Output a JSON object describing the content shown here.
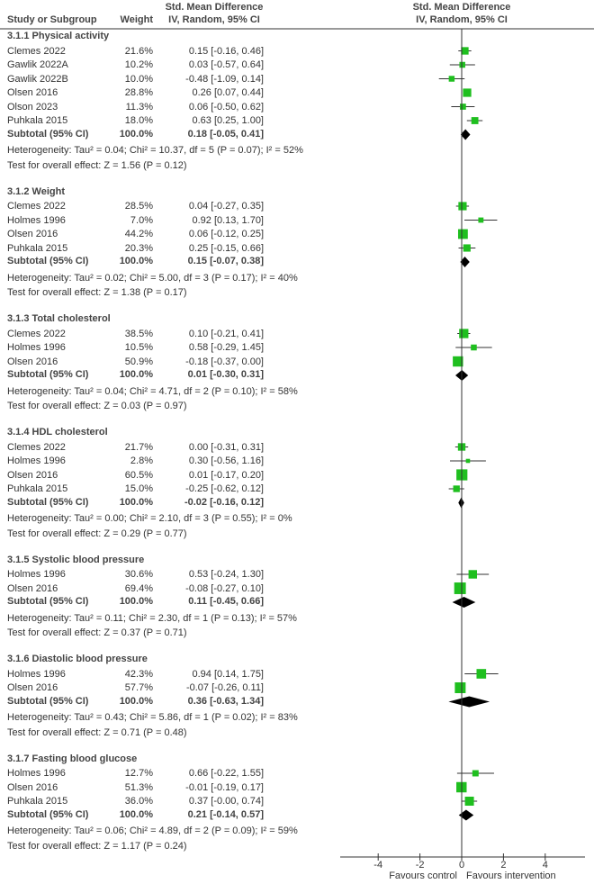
{
  "header": {
    "study_col": "Study or Subgroup",
    "weight_col": "Weight",
    "effect_col_line1": "Std. Mean Difference",
    "effect_col_line2": "IV, Random, 95% CI",
    "plot_col_line1": "Std. Mean Difference",
    "plot_col_line2": "IV, Random, 95% CI"
  },
  "chart_data": {
    "type": "forest",
    "xlim": [
      -6,
      6
    ],
    "xticks": [
      "-4",
      "-2",
      "0",
      "2",
      "4"
    ],
    "xtick_values": [
      -4,
      -2,
      0,
      2,
      4
    ],
    "favours_left": "Favours control",
    "favours_right": "Favours intervention",
    "colors": {
      "study_marker": "#1fbf1f",
      "diamond": "#000000",
      "ci_line": "#333333"
    },
    "sections": [
      {
        "title": "3.1.1 Physical activity",
        "studies": [
          {
            "name": "Clemes 2022",
            "weight": "21.6%",
            "ci": "0.15 [-0.16, 0.46]",
            "smd": 0.15,
            "lo": -0.16,
            "hi": 0.46
          },
          {
            "name": "Gawlik 2022A",
            "weight": "10.2%",
            "ci": "0.03 [-0.57, 0.64]",
            "smd": 0.03,
            "lo": -0.57,
            "hi": 0.64
          },
          {
            "name": "Gawlik 2022B",
            "weight": "10.0%",
            "ci": "-0.48 [-1.09, 0.14]",
            "smd": -0.48,
            "lo": -1.09,
            "hi": 0.14
          },
          {
            "name": "Olsen 2016",
            "weight": "28.8%",
            "ci": "0.26 [0.07, 0.44]",
            "smd": 0.26,
            "lo": 0.07,
            "hi": 0.44
          },
          {
            "name": "Olson 2023",
            "weight": "11.3%",
            "ci": "0.06 [-0.50, 0.62]",
            "smd": 0.06,
            "lo": -0.5,
            "hi": 0.62
          },
          {
            "name": "Puhkala 2015",
            "weight": "18.0%",
            "ci": "0.63 [0.25, 1.00]",
            "smd": 0.63,
            "lo": 0.25,
            "hi": 1.0
          }
        ],
        "subtotal": {
          "label": "Subtotal (95% CI)",
          "weight": "100.0%",
          "ci": "0.18 [-0.05, 0.41]",
          "smd": 0.18,
          "lo": -0.05,
          "hi": 0.41
        },
        "heterogeneity": "Heterogeneity: Tau² = 0.04; Chi² = 10.37, df = 5 (P = 0.07); I² = 52%",
        "overall_effect": "Test for overall effect: Z = 1.56 (P = 0.12)"
      },
      {
        "title": "3.1.2 Weight",
        "studies": [
          {
            "name": "Clemes 2022",
            "weight": "28.5%",
            "ci": "0.04 [-0.27, 0.35]",
            "smd": 0.04,
            "lo": -0.27,
            "hi": 0.35
          },
          {
            "name": "Holmes 1996",
            "weight": "7.0%",
            "ci": "0.92 [0.13, 1.70]",
            "smd": 0.92,
            "lo": 0.13,
            "hi": 1.7
          },
          {
            "name": "Olsen 2016",
            "weight": "44.2%",
            "ci": "0.06 [-0.12, 0.25]",
            "smd": 0.06,
            "lo": -0.12,
            "hi": 0.25
          },
          {
            "name": "Puhkala 2015",
            "weight": "20.3%",
            "ci": "0.25 [-0.15, 0.66]",
            "smd": 0.25,
            "lo": -0.15,
            "hi": 0.66
          }
        ],
        "subtotal": {
          "label": "Subtotal (95% CI)",
          "weight": "100.0%",
          "ci": "0.15 [-0.07, 0.38]",
          "smd": 0.15,
          "lo": -0.07,
          "hi": 0.38
        },
        "heterogeneity": "Heterogeneity: Tau² = 0.02; Chi² = 5.00, df = 3 (P = 0.17); I² = 40%",
        "overall_effect": "Test for overall effect: Z = 1.38 (P = 0.17)"
      },
      {
        "title": "3.1.3 Total cholesterol",
        "studies": [
          {
            "name": "Clemes 2022",
            "weight": "38.5%",
            "ci": "0.10 [-0.21, 0.41]",
            "smd": 0.1,
            "lo": -0.21,
            "hi": 0.41
          },
          {
            "name": "Holmes 1996",
            "weight": "10.5%",
            "ci": "0.58 [-0.29, 1.45]",
            "smd": 0.58,
            "lo": -0.29,
            "hi": 1.45
          },
          {
            "name": "Olsen 2016",
            "weight": "50.9%",
            "ci": "-0.18 [-0.37, 0.00]",
            "smd": -0.18,
            "lo": -0.37,
            "hi": 0.0
          }
        ],
        "subtotal": {
          "label": "Subtotal (95% CI)",
          "weight": "100.0%",
          "ci": "0.01 [-0.30, 0.31]",
          "smd": 0.01,
          "lo": -0.3,
          "hi": 0.31
        },
        "heterogeneity": "Heterogeneity: Tau² = 0.04; Chi² = 4.71, df = 2 (P = 0.10); I² = 58%",
        "overall_effect": "Test for overall effect: Z = 0.03 (P = 0.97)"
      },
      {
        "title": "3.1.4 HDL cholesterol",
        "studies": [
          {
            "name": "Clemes 2022",
            "weight": "21.7%",
            "ci": "0.00 [-0.31, 0.31]",
            "smd": 0.0,
            "lo": -0.31,
            "hi": 0.31
          },
          {
            "name": "Holmes 1996",
            "weight": "2.8%",
            "ci": "0.30 [-0.56, 1.16]",
            "smd": 0.3,
            "lo": -0.56,
            "hi": 1.16
          },
          {
            "name": "Olsen 2016",
            "weight": "60.5%",
            "ci": "0.01 [-0.17, 0.20]",
            "smd": 0.01,
            "lo": -0.17,
            "hi": 0.2
          },
          {
            "name": "Puhkala 2015",
            "weight": "15.0%",
            "ci": "-0.25 [-0.62, 0.12]",
            "smd": -0.25,
            "lo": -0.62,
            "hi": 0.12
          }
        ],
        "subtotal": {
          "label": "Subtotal (95% CI)",
          "weight": "100.0%",
          "ci": "-0.02 [-0.16, 0.12]",
          "smd": -0.02,
          "lo": -0.16,
          "hi": 0.12
        },
        "heterogeneity": "Heterogeneity: Tau² = 0.00; Chi² = 2.10, df = 3 (P = 0.55); I² = 0%",
        "overall_effect": "Test for overall effect: Z = 0.29 (P = 0.77)"
      },
      {
        "title": "3.1.5 Systolic blood pressure",
        "studies": [
          {
            "name": "Holmes 1996",
            "weight": "30.6%",
            "ci": "0.53 [-0.24, 1.30]",
            "smd": 0.53,
            "lo": -0.24,
            "hi": 1.3
          },
          {
            "name": "Olsen 2016",
            "weight": "69.4%",
            "ci": "-0.08 [-0.27, 0.10]",
            "smd": -0.08,
            "lo": -0.27,
            "hi": 0.1
          }
        ],
        "subtotal": {
          "label": "Subtotal (95% CI)",
          "weight": "100.0%",
          "ci": "0.11 [-0.45, 0.66]",
          "smd": 0.11,
          "lo": -0.45,
          "hi": 0.66
        },
        "heterogeneity": "Heterogeneity: Tau² = 0.11; Chi² = 2.30, df = 1 (P = 0.13); I² = 57%",
        "overall_effect": "Test for overall effect: Z = 0.37 (P = 0.71)"
      },
      {
        "title": "3.1.6 Diastolic blood pressure",
        "studies": [
          {
            "name": "Holmes 1996",
            "weight": "42.3%",
            "ci": "0.94 [0.14, 1.75]",
            "smd": 0.94,
            "lo": 0.14,
            "hi": 1.75
          },
          {
            "name": "Olsen 2016",
            "weight": "57.7%",
            "ci": "-0.07 [-0.26, 0.11]",
            "smd": -0.07,
            "lo": -0.26,
            "hi": 0.11
          }
        ],
        "subtotal": {
          "label": "Subtotal (95% CI)",
          "weight": "100.0%",
          "ci": "0.36 [-0.63, 1.34]",
          "smd": 0.36,
          "lo": -0.63,
          "hi": 1.34
        },
        "heterogeneity": "Heterogeneity: Tau² = 0.43; Chi² = 5.86, df = 1 (P = 0.02); I² = 83%",
        "overall_effect": "Test for overall effect: Z = 0.71 (P = 0.48)"
      },
      {
        "title": "3.1.7 Fasting blood glucose",
        "studies": [
          {
            "name": "Holmes 1996",
            "weight": "12.7%",
            "ci": "0.66 [-0.22, 1.55]",
            "smd": 0.66,
            "lo": -0.22,
            "hi": 1.55
          },
          {
            "name": "Olsen 2016",
            "weight": "51.3%",
            "ci": "-0.01 [-0.19, 0.17]",
            "smd": -0.01,
            "lo": -0.19,
            "hi": 0.17
          },
          {
            "name": "Puhkala 2015",
            "weight": "36.0%",
            "ci": "0.37 [-0.00, 0.74]",
            "smd": 0.37,
            "lo": -0.0,
            "hi": 0.74
          }
        ],
        "subtotal": {
          "label": "Subtotal (95% CI)",
          "weight": "100.0%",
          "ci": "0.21 [-0.14, 0.57]",
          "smd": 0.21,
          "lo": -0.14,
          "hi": 0.57
        },
        "heterogeneity": "Heterogeneity: Tau² = 0.06; Chi² = 4.89, df = 2 (P = 0.09); I² = 59%",
        "overall_effect": "Test for overall effect: Z = 1.17 (P = 0.24)"
      }
    ]
  }
}
